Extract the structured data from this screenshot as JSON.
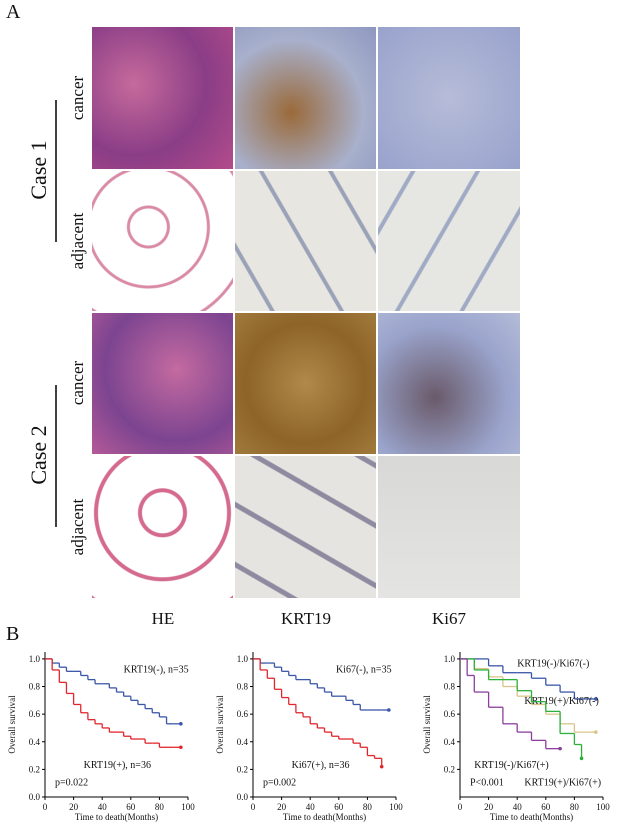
{
  "panel_a": {
    "label": "A",
    "groups": [
      {
        "label": "Case 1",
        "rows": [
          "cancer",
          "adjacent"
        ]
      },
      {
        "label": "Case 2",
        "rows": [
          "cancer",
          "adjacent"
        ]
      }
    ],
    "columns": [
      "HE",
      "KRT19",
      "Ki67"
    ]
  },
  "panel_b": {
    "label": "B"
  },
  "chart_data": [
    {
      "type": "step",
      "ylabel": "Overall survival",
      "xlabel": "Time to death(Months)",
      "annotation": "p=0.022",
      "xlim": [
        0,
        100
      ],
      "xticks": [
        0,
        20,
        40,
        60,
        80,
        100
      ],
      "ylim": [
        0,
        1.05
      ],
      "yticks": [
        {
          "value": 0,
          "label": "0.0"
        },
        0.2,
        0.4,
        0.6,
        0.8,
        {
          "value": 1,
          "label": "1.0"
        }
      ],
      "series": [
        {
          "name": "KRT19(-), n=35",
          "color": "#3a56a8",
          "x": [
            0,
            5,
            10,
            15,
            20,
            25,
            30,
            35,
            40,
            45,
            50,
            55,
            60,
            65,
            70,
            75,
            80,
            85,
            90,
            95
          ],
          "values": [
            1,
            0.97,
            0.94,
            0.91,
            0.91,
            0.88,
            0.85,
            0.82,
            0.82,
            0.79,
            0.76,
            0.73,
            0.7,
            0.67,
            0.64,
            0.61,
            0.58,
            0.53,
            0.53,
            0.53
          ]
        },
        {
          "name": "KRT19(+), n=36",
          "color": "#e0262c",
          "x": [
            0,
            5,
            10,
            15,
            20,
            25,
            30,
            35,
            40,
            45,
            50,
            55,
            60,
            65,
            70,
            75,
            80,
            85,
            90,
            95
          ],
          "values": [
            1,
            0.92,
            0.83,
            0.75,
            0.67,
            0.61,
            0.56,
            0.53,
            0.5,
            0.47,
            0.47,
            0.44,
            0.42,
            0.42,
            0.39,
            0.39,
            0.36,
            0.36,
            0.36,
            0.36
          ]
        }
      ]
    },
    {
      "type": "step",
      "ylabel": "Overall survival",
      "xlabel": "Time to death(Months)",
      "annotation": "p=0.002",
      "xlim": [
        0,
        100
      ],
      "xticks": [
        0,
        20,
        40,
        60,
        80,
        100
      ],
      "ylim": [
        0,
        1.05
      ],
      "yticks": [
        {
          "value": 0,
          "label": "0.0"
        },
        0.2,
        0.4,
        0.6,
        0.8,
        {
          "value": 1,
          "label": "1.0"
        }
      ],
      "series": [
        {
          "name": "Ki67(-), n=35",
          "color": "#3a56a8",
          "x": [
            0,
            5,
            10,
            15,
            20,
            25,
            30,
            35,
            40,
            45,
            50,
            55,
            60,
            65,
            70,
            75,
            80,
            85,
            90,
            95
          ],
          "values": [
            1,
            0.97,
            0.97,
            0.94,
            0.91,
            0.88,
            0.85,
            0.85,
            0.82,
            0.79,
            0.76,
            0.73,
            0.73,
            0.7,
            0.67,
            0.63,
            0.63,
            0.63,
            0.63,
            0.63
          ]
        },
        {
          "name": "Ki67(+), n=36",
          "color": "#e0262c",
          "x": [
            0,
            5,
            10,
            15,
            20,
            25,
            30,
            35,
            40,
            45,
            50,
            55,
            60,
            65,
            70,
            75,
            80,
            85,
            90
          ],
          "values": [
            1,
            0.92,
            0.86,
            0.78,
            0.72,
            0.67,
            0.61,
            0.58,
            0.53,
            0.5,
            0.47,
            0.44,
            0.42,
            0.42,
            0.39,
            0.36,
            0.3,
            0.28,
            0.22
          ]
        }
      ]
    },
    {
      "type": "step",
      "ylabel": "Overall survival",
      "xlabel": "Time to death(Months)",
      "annotation": "P<0.001",
      "xlim": [
        0,
        100
      ],
      "xticks": [
        0,
        20,
        40,
        60,
        80,
        100
      ],
      "ylim": [
        0,
        1.05
      ],
      "yticks": [
        0.2,
        0.4,
        0.6,
        0.8,
        {
          "value": 1,
          "label": "1.0"
        }
      ],
      "series": [
        {
          "name": "KRT19(-)/Ki67(-)",
          "color": "#3a56a8",
          "x": [
            0,
            10,
            20,
            30,
            40,
            50,
            60,
            70,
            80,
            95
          ],
          "values": [
            1,
            1,
            0.95,
            0.9,
            0.9,
            0.86,
            0.81,
            0.76,
            0.71,
            0.71
          ]
        },
        {
          "name": "KRT19(+)/Ki67(-)",
          "color": "#d8c48a",
          "x": [
            0,
            10,
            20,
            30,
            40,
            50,
            60,
            70,
            80,
            95
          ],
          "values": [
            1,
            0.93,
            0.87,
            0.8,
            0.73,
            0.67,
            0.6,
            0.53,
            0.47,
            0.47
          ]
        },
        {
          "name": "KRT19(-)/Ki67(+)",
          "color": "#2bb03a",
          "x": [
            0,
            10,
            20,
            30,
            40,
            50,
            60,
            70,
            80,
            85
          ],
          "values": [
            1,
            0.92,
            0.85,
            0.85,
            0.77,
            0.69,
            0.62,
            0.46,
            0.38,
            0.28
          ]
        },
        {
          "name": "KRT19(+)/Ki67(+)",
          "color": "#8a3f9c",
          "x": [
            0,
            5,
            10,
            20,
            30,
            40,
            50,
            60,
            70
          ],
          "values": [
            1,
            0.88,
            0.76,
            0.65,
            0.53,
            0.47,
            0.41,
            0.35,
            0.35
          ]
        }
      ]
    }
  ]
}
